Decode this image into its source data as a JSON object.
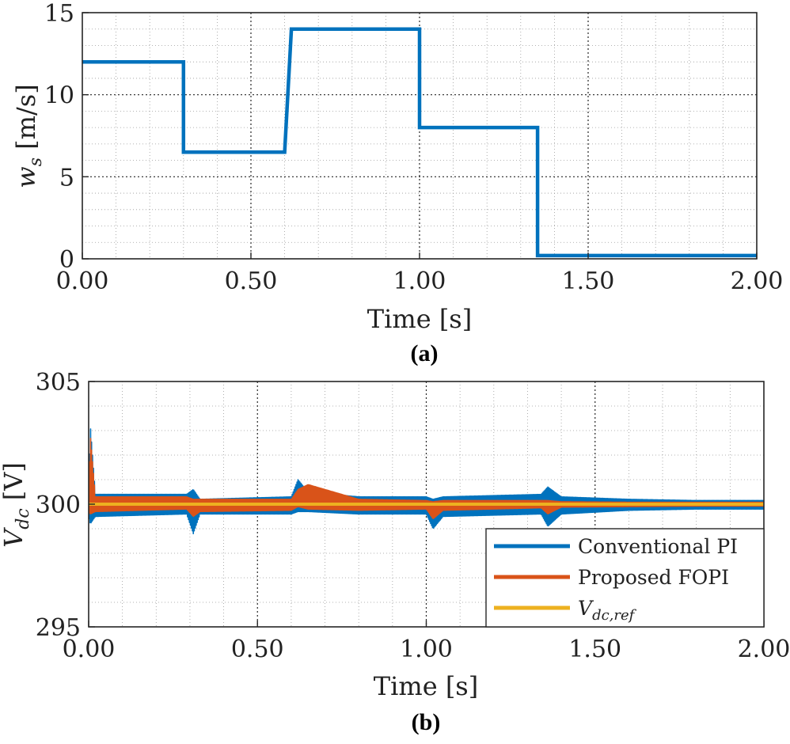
{
  "chart_data": [
    {
      "type": "line",
      "caption": "(a)",
      "xlabel": "Time [s]",
      "ylabel_base": "w",
      "ylabel_sub": "s",
      "ylabel_unit": " [m/s]",
      "xlim": [
        0,
        2
      ],
      "ylim": [
        0,
        15
      ],
      "xticks": [
        0,
        0.5,
        1,
        1.5,
        2
      ],
      "xtick_labels": [
        "0.00",
        "0.50",
        "1.00",
        "1.50",
        "2.00"
      ],
      "yticks": [
        0,
        5,
        10,
        15
      ],
      "ytick_labels": [
        "0",
        "5",
        "10",
        "15"
      ],
      "grid": true,
      "series": [
        {
          "name": "w_s",
          "color": "#0072BD",
          "x": [
            0,
            0.3,
            0.3,
            0.6,
            0.62,
            1.0,
            1.0,
            1.35,
            1.35,
            2.0
          ],
          "y": [
            12,
            12,
            6.5,
            6.5,
            14,
            14,
            8,
            8,
            0.2,
            0.2
          ]
        }
      ]
    },
    {
      "type": "line",
      "caption": "(b)",
      "xlabel": "Time [s]",
      "ylabel_base": "V",
      "ylabel_sub": "dc",
      "ylabel_unit": " [V]",
      "xlim": [
        0,
        2
      ],
      "ylim": [
        295,
        305
      ],
      "xticks": [
        0,
        0.5,
        1,
        1.5,
        2
      ],
      "xtick_labels": [
        "0.00",
        "0.50",
        "1.00",
        "1.50",
        "2.00"
      ],
      "yticks": [
        295,
        300,
        305
      ],
      "ytick_labels": [
        "295",
        "300",
        "305"
      ],
      "grid": true,
      "legend_position": "bottom-right",
      "series": [
        {
          "name": "Conventional PI",
          "color": "#0072BD",
          "band_x": [
            0,
            0.005,
            0.02,
            0.29,
            0.31,
            0.33,
            0.6,
            0.62,
            0.65,
            0.8,
            1.0,
            1.02,
            1.05,
            1.34,
            1.36,
            1.4,
            1.6,
            1.8,
            2.0
          ],
          "band_upper": [
            300.5,
            303.2,
            300.4,
            300.4,
            300.6,
            300.2,
            300.3,
            301.0,
            300.5,
            300.3,
            300.3,
            300.2,
            300.3,
            300.4,
            300.7,
            300.3,
            300.2,
            300.15,
            300.15
          ],
          "band_lower": [
            299.5,
            299.2,
            299.5,
            299.6,
            298.8,
            299.6,
            299.6,
            299.7,
            299.7,
            299.6,
            299.6,
            299.0,
            299.5,
            299.6,
            299.1,
            299.6,
            299.75,
            299.8,
            299.8
          ]
        },
        {
          "name": "Proposed FOPI",
          "color": "#D95319",
          "band_x": [
            0,
            0.005,
            0.02,
            0.29,
            0.31,
            0.33,
            0.6,
            0.62,
            0.65,
            0.8,
            1.0,
            1.02,
            1.05,
            1.34,
            1.36,
            1.4,
            1.6,
            1.8,
            2.0
          ],
          "band_upper": [
            300.3,
            302.8,
            300.3,
            300.3,
            300.2,
            300.2,
            300.2,
            300.6,
            300.8,
            300.2,
            300.15,
            300.1,
            300.15,
            300.15,
            300.15,
            300.1,
            300.08,
            300.08,
            300.08
          ],
          "band_lower": [
            299.7,
            299.6,
            299.7,
            299.8,
            299.5,
            299.7,
            299.75,
            299.9,
            299.8,
            299.75,
            299.8,
            299.4,
            299.75,
            299.85,
            299.6,
            299.88,
            299.9,
            299.92,
            299.92
          ]
        },
        {
          "name": "V_dc,ref",
          "color": "#EDB120",
          "x": [
            0,
            2
          ],
          "y": [
            300,
            300
          ]
        }
      ],
      "legend": [
        {
          "label": "Conventional PI",
          "color": "#0072BD"
        },
        {
          "label": "Proposed FOPI",
          "color": "#D95319"
        },
        {
          "label_base": "V",
          "label_sub": "dc,ref",
          "color": "#EDB120"
        }
      ]
    }
  ]
}
